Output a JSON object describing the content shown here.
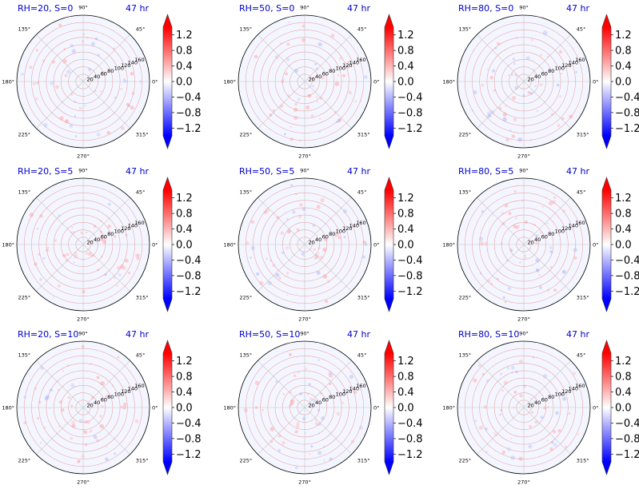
{
  "chart_data": [
    {
      "type": "heatmap",
      "title": "RH=20, S=0",
      "time_label": "47 hr"
    },
    {
      "type": "heatmap",
      "title": "RH=50, S=0",
      "time_label": "47 hr"
    },
    {
      "type": "heatmap",
      "title": "RH=80, S=0",
      "time_label": "47 hr"
    },
    {
      "type": "heatmap",
      "title": "RH=20, S=5",
      "time_label": "47 hr"
    },
    {
      "type": "heatmap",
      "title": "RH=50, S=5",
      "time_label": "47 hr"
    },
    {
      "type": "heatmap",
      "title": "RH=80, S=5",
      "time_label": "47 hr"
    },
    {
      "type": "heatmap",
      "title": "RH=20, S=10",
      "time_label": "47 hr"
    },
    {
      "type": "heatmap",
      "title": "RH=50, S=10",
      "time_label": "47 hr"
    },
    {
      "type": "heatmap",
      "title": "RH=80, S=10",
      "time_label": "47 hr"
    }
  ],
  "polar_axes": {
    "projection": "polar",
    "angle_ticks": [
      "0°",
      "45°",
      "90°",
      "135°",
      "180°",
      "225°",
      "270°",
      "315°"
    ],
    "angle_values": [
      0,
      45,
      90,
      135,
      180,
      225,
      270,
      315
    ],
    "radial_ticks": [
      "20",
      "40",
      "60",
      "80",
      "100",
      "120",
      "140",
      "160"
    ],
    "radial_values": [
      20,
      40,
      60,
      80,
      100,
      120,
      140,
      160
    ],
    "rmax": 180
  },
  "colorbar": {
    "ticks": [
      "1.2",
      "0.8",
      "0.4",
      "0.0",
      "−0.4",
      "−0.8",
      "−1.2"
    ],
    "tick_values": [
      1.2,
      0.8,
      0.4,
      0.0,
      -0.4,
      -0.8,
      -1.2
    ],
    "range": [
      -1.4,
      1.4
    ],
    "colormap": "bwr",
    "extend": "both",
    "color_low": "#0000ff",
    "color_mid": "#ffffff",
    "color_high": "#ff0000"
  }
}
